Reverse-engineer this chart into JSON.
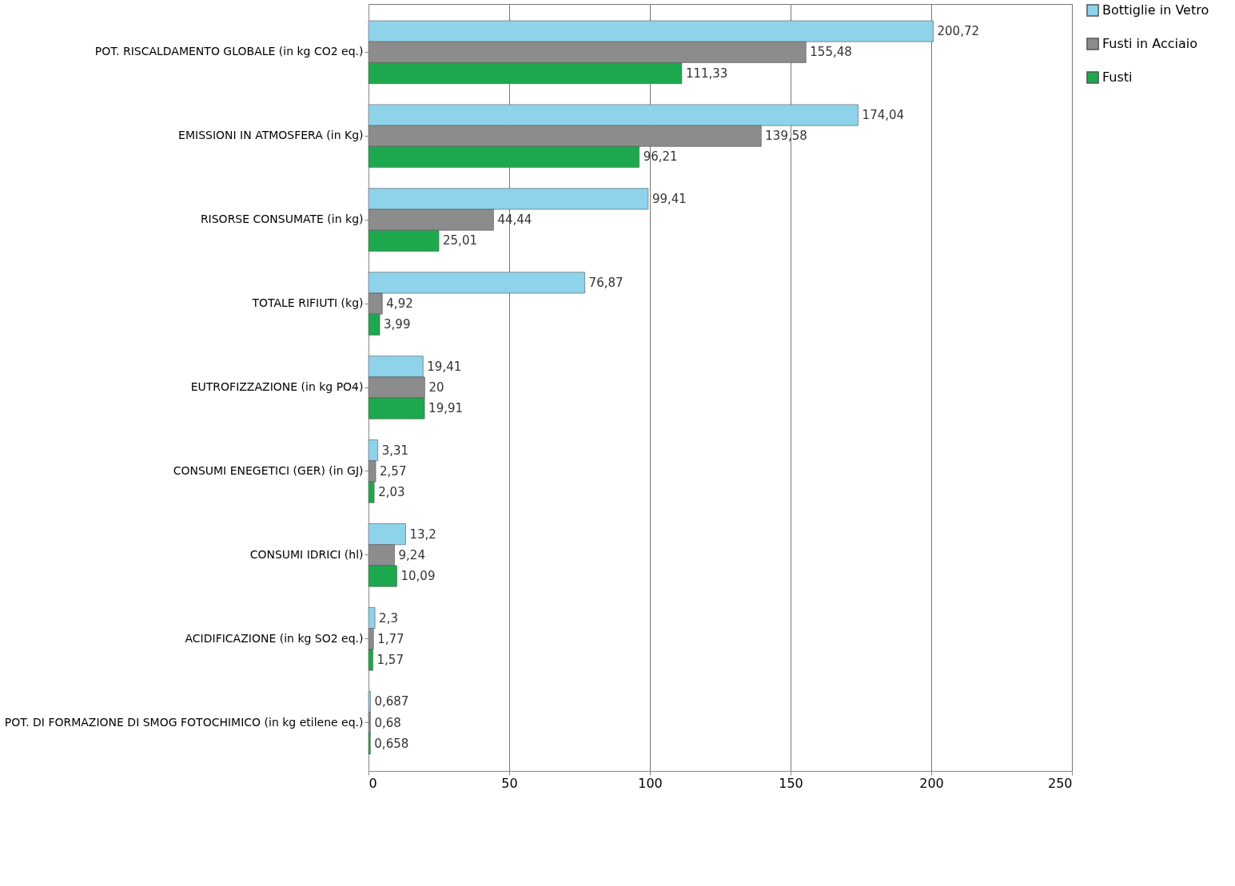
{
  "chart_data": {
    "type": "bar",
    "orientation": "horizontal",
    "categories": [
      "POT. RISCALDAMENTO GLOBALE (in kg CO2 eq.)",
      "EMISSIONI IN ATMOSFERA (in Kg)",
      "RISORSE CONSUMATE (in kg)",
      "TOTALE RIFIUTI (kg)",
      "EUTROFIZZAZIONE (in kg PO4)",
      "CONSUMI ENEGETICI (GER) (in GJ)",
      "CONSUMI IDRICI (hl)",
      "ACIDIFICAZIONE (in kg SO2 eq.)",
      "POT. DI FORMAZIONE DI SMOG FOTOCHIMICO (in kg etilene eq.)"
    ],
    "series": [
      {
        "name": "Bottiglie in Vetro",
        "color": "#8ed3ea",
        "values": [
          200.72,
          174.04,
          99.41,
          76.87,
          19.41,
          3.31,
          13.2,
          2.3,
          0.687
        ],
        "value_labels": [
          "200,72",
          "174,04",
          "99,41",
          "76,87",
          "19,41",
          "3,31",
          "13,2",
          "2,3",
          "0,687"
        ]
      },
      {
        "name": "Fusti in Acciaio",
        "color": "#8c8c8c",
        "values": [
          155.48,
          139.58,
          44.44,
          4.92,
          20,
          2.57,
          9.24,
          1.77,
          0.68
        ],
        "value_labels": [
          "155,48",
          "139,58",
          "44,44",
          "4,92",
          "20",
          "2,57",
          "9,24",
          "1,77",
          "0,68"
        ]
      },
      {
        "name": "Fusti",
        "color": "#1ea84e",
        "values": [
          111.33,
          96.21,
          25.01,
          3.99,
          19.91,
          2.03,
          10.09,
          1.57,
          0.658
        ],
        "value_labels": [
          "111,33",
          "96,21",
          "25,01",
          "3,99",
          "19,91",
          "2,03",
          "10,09",
          "1,57",
          "0,658"
        ]
      }
    ],
    "xlim": [
      0,
      250
    ],
    "xticks": [
      0,
      50,
      100,
      150,
      200,
      250
    ],
    "grid": "x",
    "legend": "right"
  }
}
